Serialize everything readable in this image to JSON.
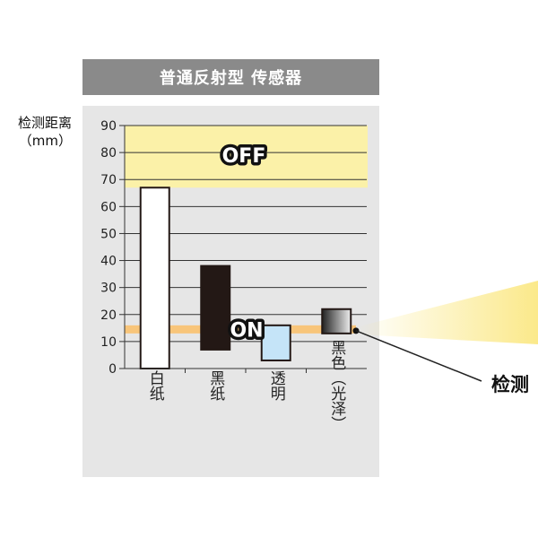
{
  "title": "普通反射型 传感器",
  "ylabel_line1": "检测距离",
  "ylabel_line2": "（mm）",
  "zone_off_label": "OFF",
  "zone_on_label": "ON",
  "detect_label": "检测",
  "colors": {
    "title_bg": "#8a8a8a",
    "panel_bg": "#e6e6e6",
    "off_zone": "#fbf1a8",
    "on_band": "#f8c57a",
    "light_beam": "#fbe98a",
    "bar_white": "#ffffff",
    "bar_black": "#231815",
    "bar_transparent": "#c5e4f8",
    "bar_glossy_black": "#777777"
  },
  "chart_data": {
    "type": "bar",
    "categories": [
      "白纸",
      "黑纸",
      "透明",
      "黑色（光泽）"
    ],
    "floating_bars": [
      {
        "category": "白纸",
        "bottom": 0,
        "top": 67,
        "color_key": "bar_white"
      },
      {
        "category": "黑纸",
        "bottom": 7,
        "top": 38,
        "color_key": "bar_black"
      },
      {
        "category": "透明",
        "bottom": 3,
        "top": 16,
        "color_key": "bar_transparent"
      },
      {
        "category": "黑色（光泽）",
        "bottom": 13,
        "top": 22,
        "color_key": "bar_glossy_black"
      }
    ],
    "zones": [
      {
        "label": "OFF",
        "from": 67,
        "to": 90
      },
      {
        "label": "ON",
        "from": 13,
        "to": 16
      }
    ],
    "ylabel": "检测距离（mm）",
    "ylim": [
      0,
      90
    ],
    "yticks": [
      0,
      10,
      20,
      30,
      40,
      50,
      60,
      70,
      80,
      90
    ],
    "grid": true
  }
}
